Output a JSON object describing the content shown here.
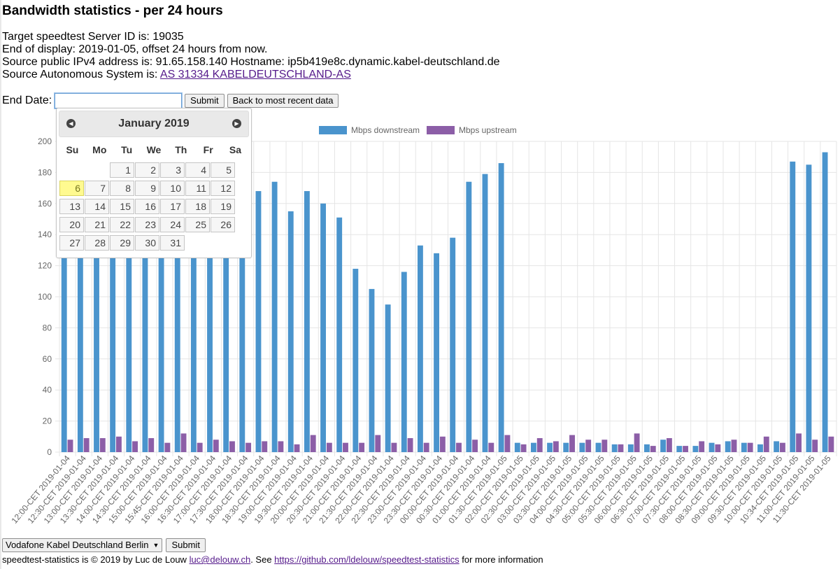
{
  "page": {
    "title": "Bandwidth statistics - per 24 hours",
    "server_line": "Target speedtest Server ID is: 19035",
    "display_line": "End of display: 2019-01-05, offset 24 hours from now.",
    "ip_line": "Source public IPv4 address is: 91.65.158.140 Hostname: ip5b419e8c.dynamic.kabel-deutschland.de",
    "as_prefix": "Source Autonomous System is: ",
    "as_link": "AS 31334 KABELDEUTSCHLAND-AS"
  },
  "form": {
    "end_date_label": "End Date:",
    "end_date_value": "",
    "submit_label": "Submit",
    "recent_label": "Back to most recent data"
  },
  "datepicker": {
    "month_title": "January 2019",
    "prev_icon": "circle-triangle-w-icon",
    "next_icon": "circle-triangle-e-icon",
    "weekdays": [
      "Su",
      "Mo",
      "Tu",
      "We",
      "Th",
      "Fr",
      "Sa"
    ],
    "first_weekday_index": 2,
    "days": [
      "1",
      "2",
      "3",
      "4",
      "5",
      "6",
      "7",
      "8",
      "9",
      "10",
      "11",
      "12",
      "13",
      "14",
      "15",
      "16",
      "17",
      "18",
      "19",
      "20",
      "21",
      "22",
      "23",
      "24",
      "25",
      "26",
      "27",
      "28",
      "29",
      "30",
      "31"
    ],
    "highlighted_day": "6",
    "colors": {
      "highlight": "#fffa90"
    }
  },
  "server_select": {
    "value": "Vodafone Kabel Deutschland Berlin",
    "submit_label": "Submit"
  },
  "footer": {
    "text_before": "speedtest-statistics is © 2019 by Luc de Louw ",
    "email": "luc@delouw.ch",
    "text_middle": ". See ",
    "url": "https://github.com/ldelouw/speedtest-statistics",
    "text_after": " for more information"
  },
  "chart_data": {
    "type": "bar",
    "ylim": [
      0,
      200
    ],
    "yticks": [
      0,
      20,
      40,
      60,
      80,
      100,
      120,
      140,
      160,
      180,
      200
    ],
    "grid": true,
    "legend_position": "top-center",
    "categories": [
      "12:00-CET 2019-01-04",
      "12:30-CET 2019-01-04",
      "13:00-CET 2019-01-04",
      "13:30-CET 2019-01-04",
      "14:00-CET 2019-01-04",
      "14:30-CET 2019-01-04",
      "15:00-CET 2019-01-04",
      "15:45-CET 2019-01-04",
      "16:00-CET 2019-01-04",
      "16:30-CET 2019-01-04",
      "17:00-CET 2019-01-04",
      "17:30-CET 2019-01-04",
      "18:00-CET 2019-01-04",
      "18:30-CET 2019-01-04",
      "19:00-CET 2019-01-04",
      "19:30-CET 2019-01-04",
      "20:00-CET 2019-01-04",
      "20:30-CET 2019-01-04",
      "21:00-CET 2019-01-04",
      "21:30-CET 2019-01-04",
      "22:00-CET 2019-01-04",
      "22:30-CET 2019-01-04",
      "23:00-CET 2019-01-04",
      "23:30-CET 2019-01-04",
      "00:00-CET 2019-01-04",
      "00:30-CET 2019-01-04",
      "01:00-CET 2019-01-04",
      "01:30-CET 2019-01-05",
      "02:00-CET 2019-01-05",
      "02:30-CET 2019-01-05",
      "03:00-CET 2019-01-05",
      "03:30-CET 2019-01-05",
      "04:00-CET 2019-01-05",
      "04:30-CET 2019-01-05",
      "05:00-CET 2019-01-05",
      "05:30-CET 2019-01-05",
      "06:00-CET 2019-01-05",
      "06:30-CET 2019-01-05",
      "07:00-CET 2019-01-05",
      "07:30-CET 2019-01-05",
      "08:00-CET 2019-01-05",
      "08:30-CET 2019-01-05",
      "09:00-CET 2019-01-05",
      "09:30-CET 2019-01-05",
      "10:00-CET 2019-01-05",
      "10:34-CET 2019-01-05",
      "11:00-CET 2019-01-05",
      "11:30-CET 2019-01-05"
    ],
    "series": [
      {
        "name": "Mbps downstream",
        "color": "#4a94cd",
        "values": [
          160,
          150,
          158,
          165,
          152,
          148,
          150,
          145,
          162,
          172,
          155,
          176,
          168,
          174,
          155,
          168,
          160,
          151,
          118,
          105,
          95,
          116,
          133,
          128,
          138,
          174,
          179,
          186,
          6,
          6,
          6,
          6,
          6,
          6,
          5,
          5,
          5,
          8,
          4,
          4,
          6,
          7,
          6,
          5,
          7,
          187,
          185,
          193
        ]
      },
      {
        "name": "Mbps upstream",
        "color": "#8c5ea7",
        "values": [
          8,
          9,
          9,
          10,
          7,
          9,
          6,
          12,
          6,
          8,
          7,
          6,
          7,
          7,
          5,
          11,
          6,
          6,
          6,
          11,
          6,
          9,
          6,
          10,
          6,
          8,
          6,
          11,
          5,
          9,
          7,
          11,
          8,
          8,
          5,
          12,
          4,
          9,
          4,
          7,
          5,
          8,
          6,
          10,
          6,
          12,
          8,
          10
        ]
      }
    ]
  }
}
